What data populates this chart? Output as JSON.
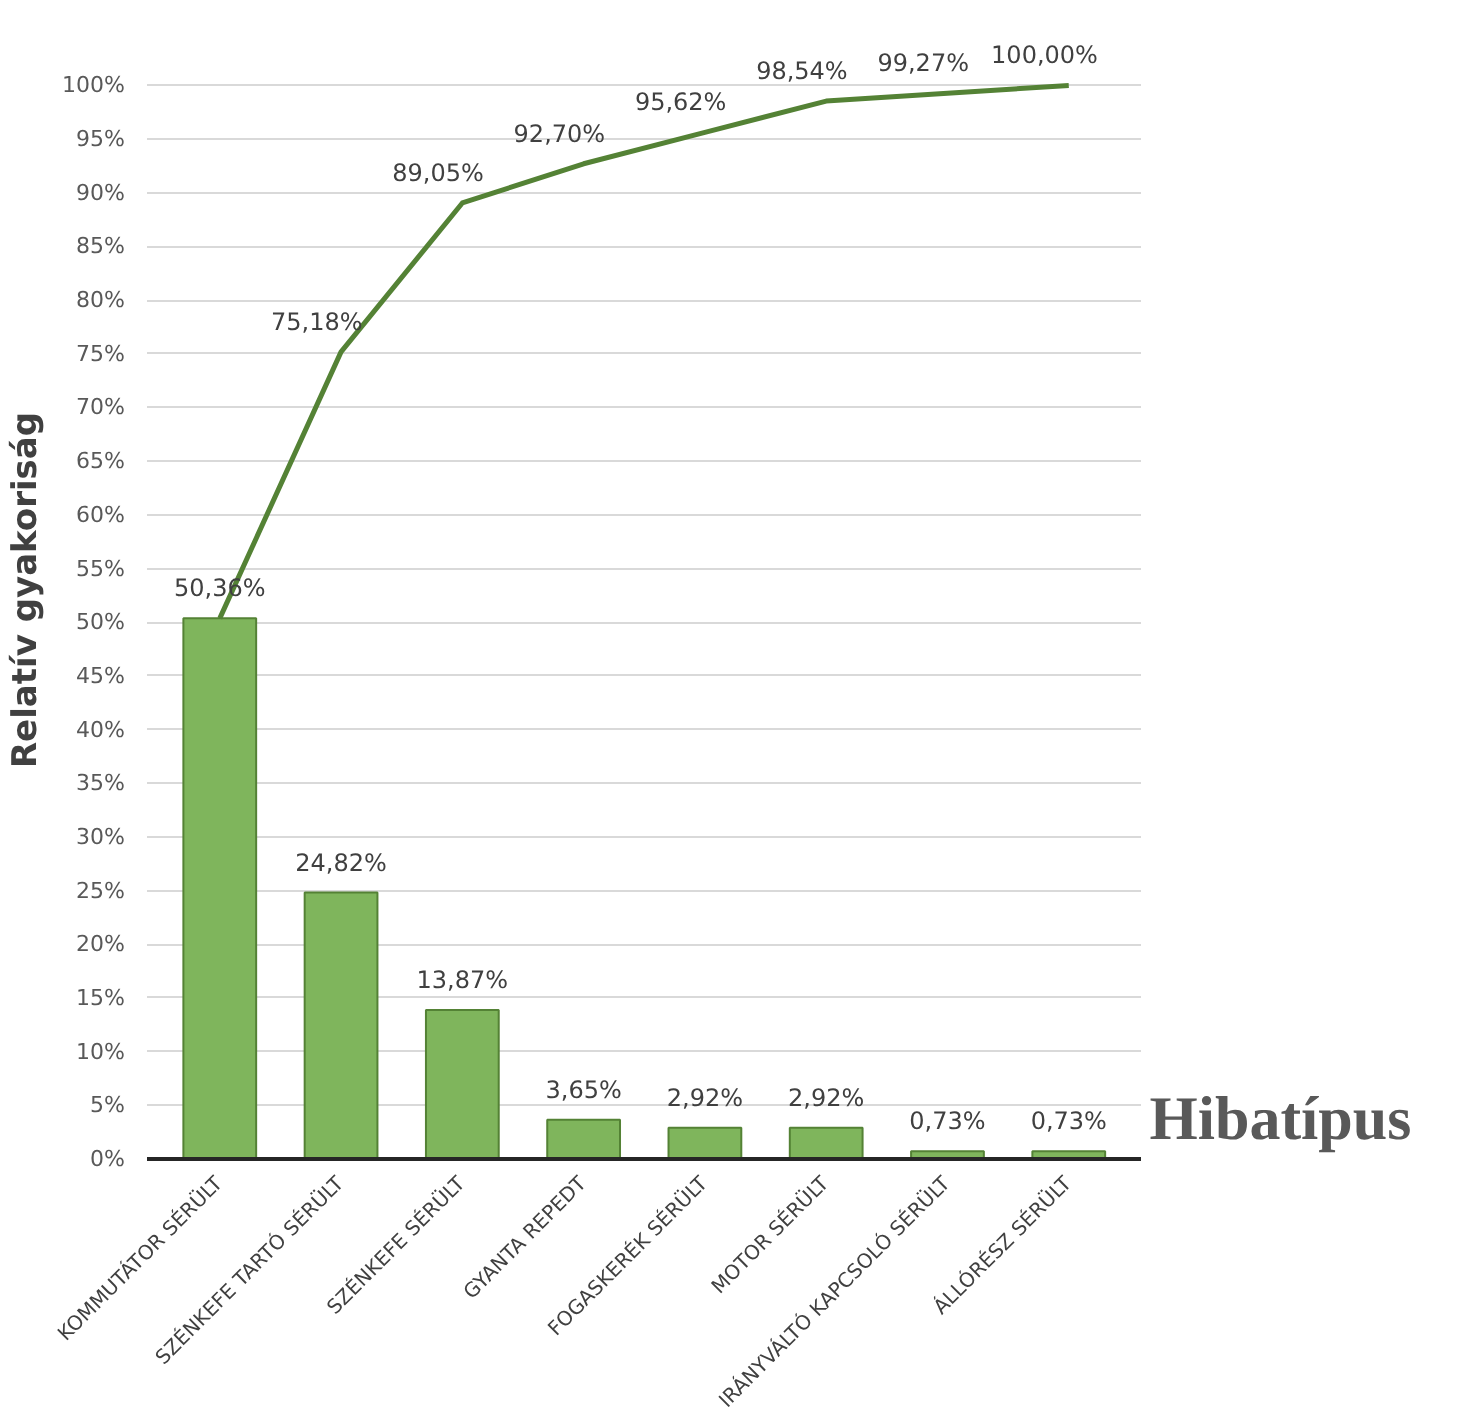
{
  "chart_data": {
    "type": "bar",
    "xlabel": "Hibatípus",
    "ylabel": "Relatív gyakoriság",
    "categories": [
      "KOMMUTÁTOR SÉRÜLT",
      "SZÉNKEFE TARTÓ SÉRÜLT",
      "SZÉNKEFE SÉRÜLT",
      "GYANTA REPEDT",
      "FOGASKERÉK SÉRÜLT",
      "MOTOR SÉRÜLT",
      "IRÁNYVÁLTÓ KAPCSOLÓ SÉRÜLT",
      "ÁLLÓRÉSZ SÉRÜLT"
    ],
    "series": [
      {
        "color": "#7fb55c",
        "values": [
          50.36,
          24.82,
          13.87,
          3.65,
          2.92,
          2.92,
          0.73,
          0.73
        ],
        "value_labels": [
          "50,36%",
          "24,82%",
          "13,87%",
          "3,65%",
          "2,92%",
          "2,92%",
          "0,73%",
          "0,73%"
        ]
      },
      {
        "type": "line",
        "color": "#548235",
        "values": [
          50.36,
          75.18,
          89.05,
          92.7,
          95.62,
          98.54,
          99.27,
          100.0
        ],
        "value_labels": [
          null,
          "75,18%",
          "89,05%",
          "92,70%",
          "95,62%",
          "98,54%",
          "99,27%",
          "100,00%"
        ]
      }
    ],
    "ylim": [
      0,
      100
    ],
    "yticks": [
      {
        "value": 0,
        "label": "0%"
      },
      {
        "value": 5,
        "label": "5%"
      },
      {
        "value": 10,
        "label": "10%"
      },
      {
        "value": 15,
        "label": "15%"
      },
      {
        "value": 20,
        "label": "20%"
      },
      {
        "value": 25,
        "label": "25%"
      },
      {
        "value": 30,
        "label": "30%"
      },
      {
        "value": 35,
        "label": "35%"
      },
      {
        "value": 40,
        "label": "40%"
      },
      {
        "value": 45,
        "label": "45%"
      },
      {
        "value": 50,
        "label": "50%"
      },
      {
        "value": 55,
        "label": "55%"
      },
      {
        "value": 60,
        "label": "60%"
      },
      {
        "value": 65,
        "label": "65%"
      },
      {
        "value": 70,
        "label": "70%"
      },
      {
        "value": 75,
        "label": "75%"
      },
      {
        "value": 80,
        "label": "80%"
      },
      {
        "value": 85,
        "label": "85%"
      },
      {
        "value": 90,
        "label": "90%"
      },
      {
        "value": 95,
        "label": "95%"
      },
      {
        "value": 100,
        "label": "100%"
      }
    ],
    "grid": "y",
    "line_style": "solid",
    "marker": "none"
  }
}
